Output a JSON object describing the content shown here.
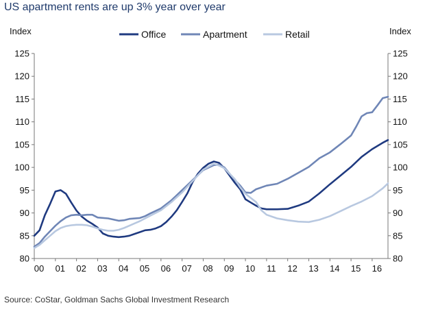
{
  "title": "US apartment rents are up 3% year over year",
  "source": "Source: CoStar, Goldman Sachs Global Investment Research",
  "chart_data": {
    "type": "line",
    "title": "US apartment rents are up 3% year over year",
    "ylabel_left": "Index",
    "ylabel_right": "Index",
    "ylim": [
      80,
      125
    ],
    "yticks": [
      80,
      85,
      90,
      95,
      100,
      105,
      110,
      115,
      120,
      125
    ],
    "xlim": [
      0,
      16.75
    ],
    "xticks": [
      0,
      1,
      2,
      3,
      4,
      5,
      6,
      7,
      8,
      9,
      10,
      11,
      12,
      13,
      14,
      15,
      16
    ],
    "xtick_labels": [
      "00",
      "01",
      "02",
      "03",
      "04",
      "05",
      "06",
      "07",
      "08",
      "09",
      "10",
      "11",
      "12",
      "13",
      "14",
      "15",
      "16"
    ],
    "grid": false,
    "legend_position": "top-center",
    "series": [
      {
        "name": "Office",
        "color": "#1f3a80",
        "points": [
          [
            0,
            85.0
          ],
          [
            0.25,
            86.2
          ],
          [
            0.5,
            89.5
          ],
          [
            0.75,
            92.0
          ],
          [
            1.0,
            94.7
          ],
          [
            1.25,
            95.0
          ],
          [
            1.5,
            94.2
          ],
          [
            1.75,
            92.3
          ],
          [
            2.0,
            90.5
          ],
          [
            2.25,
            89.2
          ],
          [
            2.5,
            88.3
          ],
          [
            2.75,
            87.6
          ],
          [
            3.0,
            86.8
          ],
          [
            3.25,
            85.5
          ],
          [
            3.5,
            85.0
          ],
          [
            3.75,
            84.8
          ],
          [
            4.0,
            84.7
          ],
          [
            4.25,
            84.8
          ],
          [
            4.5,
            85.0
          ],
          [
            4.75,
            85.4
          ],
          [
            5.0,
            85.8
          ],
          [
            5.25,
            86.2
          ],
          [
            5.5,
            86.3
          ],
          [
            5.75,
            86.6
          ],
          [
            6.0,
            87.1
          ],
          [
            6.25,
            88.0
          ],
          [
            6.5,
            89.2
          ],
          [
            6.75,
            90.6
          ],
          [
            7.0,
            92.4
          ],
          [
            7.25,
            94.3
          ],
          [
            7.5,
            96.8
          ],
          [
            7.75,
            98.6
          ],
          [
            8.0,
            99.9
          ],
          [
            8.25,
            100.8
          ],
          [
            8.5,
            101.3
          ],
          [
            8.75,
            101.0
          ],
          [
            9.0,
            99.8
          ],
          [
            9.25,
            98.2
          ],
          [
            9.5,
            96.6
          ],
          [
            9.75,
            95.2
          ],
          [
            10.0,
            93.0
          ],
          [
            10.25,
            92.3
          ],
          [
            10.5,
            91.6
          ],
          [
            10.75,
            91.0
          ],
          [
            11.0,
            90.8
          ],
          [
            11.5,
            90.8
          ],
          [
            12.0,
            90.9
          ],
          [
            12.5,
            91.6
          ],
          [
            13.0,
            92.5
          ],
          [
            13.5,
            94.3
          ],
          [
            14.0,
            96.3
          ],
          [
            14.5,
            98.2
          ],
          [
            15.0,
            100.1
          ],
          [
            15.5,
            102.3
          ],
          [
            16.0,
            104.0
          ],
          [
            16.5,
            105.4
          ],
          [
            16.75,
            106.0
          ]
        ]
      },
      {
        "name": "Apartment",
        "color": "#6f86b6",
        "points": [
          [
            0,
            82.6
          ],
          [
            0.25,
            83.4
          ],
          [
            0.5,
            84.8
          ],
          [
            0.75,
            86.0
          ],
          [
            1.0,
            87.2
          ],
          [
            1.25,
            88.2
          ],
          [
            1.5,
            89.0
          ],
          [
            1.75,
            89.5
          ],
          [
            2.0,
            89.6
          ],
          [
            2.25,
            89.5
          ],
          [
            2.5,
            89.6
          ],
          [
            2.75,
            89.6
          ],
          [
            3.0,
            89.0
          ],
          [
            3.5,
            88.8
          ],
          [
            4.0,
            88.3
          ],
          [
            4.25,
            88.4
          ],
          [
            4.5,
            88.7
          ],
          [
            5.0,
            88.9
          ],
          [
            5.25,
            89.3
          ],
          [
            5.5,
            89.9
          ],
          [
            6.0,
            91.0
          ],
          [
            6.5,
            92.8
          ],
          [
            7.0,
            95.0
          ],
          [
            7.5,
            97.2
          ],
          [
            8.0,
            99.4
          ],
          [
            8.5,
            100.5
          ],
          [
            8.75,
            100.6
          ],
          [
            9.0,
            100.0
          ],
          [
            9.5,
            97.2
          ],
          [
            9.75,
            96.0
          ],
          [
            10.0,
            94.5
          ],
          [
            10.25,
            94.4
          ],
          [
            10.5,
            95.2
          ],
          [
            11.0,
            96.0
          ],
          [
            11.5,
            96.4
          ],
          [
            12.0,
            97.5
          ],
          [
            12.5,
            98.8
          ],
          [
            13.0,
            100.1
          ],
          [
            13.5,
            102.0
          ],
          [
            14.0,
            103.3
          ],
          [
            14.5,
            105.1
          ],
          [
            15.0,
            107.0
          ],
          [
            15.25,
            109.0
          ],
          [
            15.5,
            111.2
          ],
          [
            15.75,
            111.9
          ],
          [
            16.0,
            112.1
          ],
          [
            16.25,
            113.6
          ],
          [
            16.5,
            115.2
          ],
          [
            16.75,
            115.5
          ]
        ]
      },
      {
        "name": "Retail",
        "color": "#b8c8e0",
        "points": [
          [
            0,
            82.3
          ],
          [
            0.25,
            83.0
          ],
          [
            0.5,
            84.0
          ],
          [
            0.75,
            85.0
          ],
          [
            1.0,
            86.0
          ],
          [
            1.25,
            86.7
          ],
          [
            1.5,
            87.1
          ],
          [
            1.75,
            87.3
          ],
          [
            2.0,
            87.4
          ],
          [
            2.25,
            87.4
          ],
          [
            2.5,
            87.3
          ],
          [
            2.75,
            87.0
          ],
          [
            3.0,
            86.6
          ],
          [
            3.25,
            86.3
          ],
          [
            3.5,
            86.1
          ],
          [
            3.75,
            86.1
          ],
          [
            4.0,
            86.3
          ],
          [
            4.25,
            86.7
          ],
          [
            4.5,
            87.2
          ],
          [
            4.75,
            87.7
          ],
          [
            5.0,
            88.2
          ],
          [
            5.5,
            89.4
          ],
          [
            6.0,
            90.6
          ],
          [
            6.5,
            92.4
          ],
          [
            7.0,
            94.5
          ],
          [
            7.5,
            97.0
          ],
          [
            8.0,
            99.5
          ],
          [
            8.5,
            100.8
          ],
          [
            8.75,
            100.4
          ],
          [
            9.0,
            99.8
          ],
          [
            9.5,
            97.4
          ],
          [
            9.75,
            95.6
          ],
          [
            10.0,
            94.2
          ],
          [
            10.25,
            93.3
          ],
          [
            10.5,
            92.4
          ],
          [
            10.75,
            90.6
          ],
          [
            11.0,
            89.6
          ],
          [
            11.5,
            88.8
          ],
          [
            12.0,
            88.4
          ],
          [
            12.5,
            88.1
          ],
          [
            13.0,
            88.0
          ],
          [
            13.5,
            88.5
          ],
          [
            14.0,
            89.3
          ],
          [
            14.5,
            90.4
          ],
          [
            15.0,
            91.5
          ],
          [
            15.5,
            92.5
          ],
          [
            16.0,
            93.7
          ],
          [
            16.5,
            95.4
          ],
          [
            16.75,
            96.5
          ]
        ]
      }
    ]
  }
}
